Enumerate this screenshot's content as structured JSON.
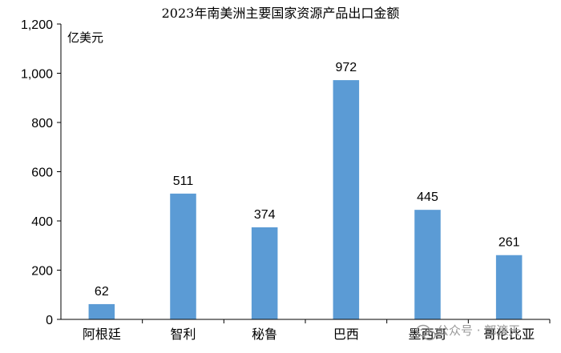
{
  "watermark": {
    "text": "公众号 · 郭濂天",
    "icon": "wechat-icon"
  },
  "chart_data": {
    "type": "bar",
    "title": "2023年南美洲主要国家资源产品出口金额",
    "unit_label": "亿美元",
    "xlabel": "",
    "ylabel": "",
    "categories": [
      "阿根廷",
      "智利",
      "秘鲁",
      "巴西",
      "墨西哥",
      "哥伦比亚"
    ],
    "series": [
      {
        "values": [
          62,
          511,
          374,
          972,
          445,
          261
        ],
        "color": "#5b9bd5"
      }
    ],
    "data_labels": [
      "62",
      "511",
      "374",
      "972",
      "445",
      "261"
    ],
    "ylim": [
      0,
      1200
    ],
    "yticks": [
      0,
      200,
      400,
      600,
      800,
      1000,
      1200
    ],
    "ytick_labels": [
      "0",
      "200",
      "400",
      "600",
      "800",
      "1,000",
      "1,200"
    ],
    "grid": false,
    "legend": "none"
  }
}
